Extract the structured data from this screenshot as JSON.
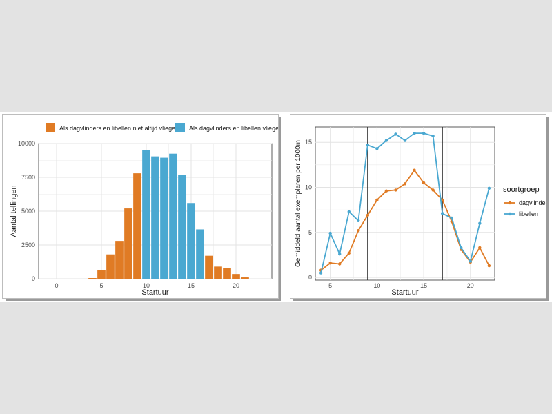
{
  "colors": {
    "orange": "#e07b24",
    "blue": "#4aa8d1",
    "grid": "#ebebeb",
    "tick_text": "#4d4d4d",
    "axis_text": "#1a1a1a"
  },
  "chart_data": [
    {
      "type": "bar",
      "xlabel": "Startuur",
      "ylabel": "Aantal tellingen",
      "xlim": [
        -2,
        24
      ],
      "ylim": [
        0,
        10000
      ],
      "xticks": [
        0,
        5,
        10,
        15,
        20
      ],
      "yticks": [
        0,
        2500,
        5000,
        7500,
        10000
      ],
      "grid": true,
      "legend_position": "top",
      "series": [
        {
          "name": "Als dagvlinders en libellen niet altijd vliegen",
          "color": "#e07b24",
          "x": [
            4,
            5,
            6,
            7,
            8,
            9,
            17,
            18,
            19,
            20,
            21
          ],
          "values": [
            50,
            650,
            1800,
            2800,
            5200,
            7800,
            1700,
            900,
            800,
            350,
            100
          ]
        },
        {
          "name": "Als dagvlinders en libellen vliegen",
          "color": "#4aa8d1",
          "x": [
            10,
            11,
            12,
            13,
            14,
            15,
            16
          ],
          "values": [
            9500,
            9050,
            8950,
            9250,
            7700,
            5600,
            3650
          ]
        }
      ]
    },
    {
      "type": "line",
      "xlabel": "Startuur",
      "ylabel": "Gemiddeld aantal exemplaren per 1000m",
      "xlim": [
        3.4,
        22.6
      ],
      "ylim": [
        -0.3,
        16.7
      ],
      "xticks": [
        5,
        10,
        15,
        20
      ],
      "yticks": [
        0,
        5,
        10,
        15
      ],
      "vlines": [
        9,
        17
      ],
      "grid": true,
      "legend_title": "soortgroep",
      "legend_position": "right",
      "series": [
        {
          "name": "dagvlinders",
          "color": "#e07b24",
          "x": [
            4,
            5,
            6,
            7,
            8,
            9,
            10,
            11,
            12,
            13,
            14,
            15,
            16,
            17,
            18,
            19,
            20,
            21,
            22
          ],
          "values": [
            0.8,
            1.6,
            1.5,
            2.7,
            5.2,
            6.9,
            8.6,
            9.6,
            9.7,
            10.4,
            11.9,
            10.5,
            9.7,
            8.6,
            6.2,
            3.1,
            1.7,
            3.3,
            1.3
          ]
        },
        {
          "name": "libellen",
          "color": "#4aa8d1",
          "x": [
            4,
            5,
            6,
            7,
            8,
            9,
            10,
            11,
            12,
            13,
            14,
            15,
            16,
            17,
            18,
            19,
            20,
            21,
            22
          ],
          "values": [
            0.5,
            4.9,
            2.6,
            7.3,
            6.3,
            14.7,
            14.3,
            15.2,
            15.9,
            15.2,
            16.0,
            16.0,
            15.7,
            7.1,
            6.6,
            3.3,
            1.8,
            6.0,
            9.9
          ]
        }
      ]
    }
  ]
}
